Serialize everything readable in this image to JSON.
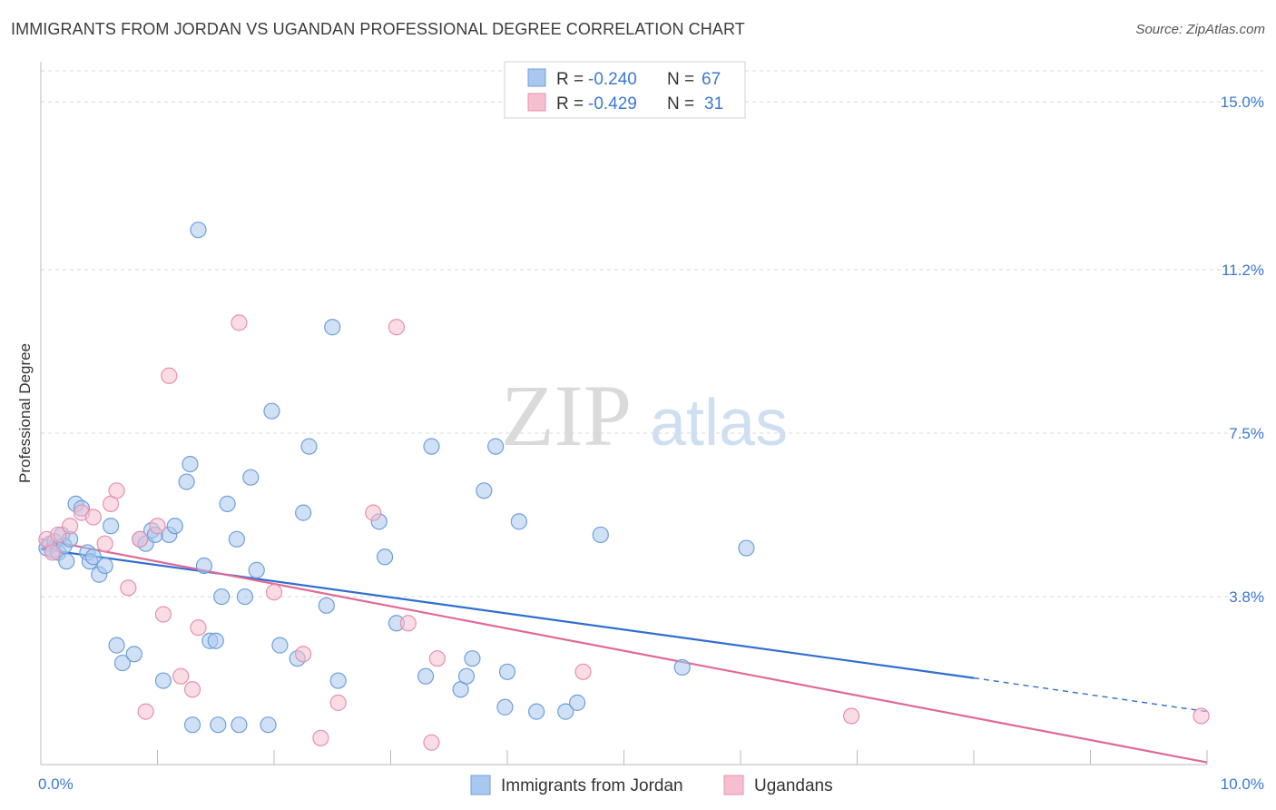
{
  "header": {
    "title": "IMMIGRANTS FROM JORDAN VS UGANDAN PROFESSIONAL DEGREE CORRELATION CHART",
    "source": "Source: ZipAtlas.com"
  },
  "watermark": {
    "zip": "ZIP",
    "atlas": "atlas"
  },
  "legend": {
    "r_label": "R =",
    "n_label": "N =",
    "rows": [
      {
        "r": "-0.240",
        "n": "67"
      },
      {
        "r": "-0.429",
        "n": "31"
      }
    ]
  },
  "colors": {
    "blue_fill": "#a9c8ef",
    "blue_stroke": "#6f9fdc",
    "blue_line": "#2f6fd0",
    "pink_fill": "#f6bfd0",
    "pink_stroke": "#e890ac",
    "pink_line": "#e06a96",
    "grid": "#d8d8d8",
    "tick_text": "#3b78d4"
  },
  "chart_data": {
    "type": "scatter",
    "title": "IMMIGRANTS FROM JORDAN VS UGANDAN PROFESSIONAL DEGREE CORRELATION CHART",
    "xlabel": "",
    "ylabel": "Professional Degree",
    "xlim": [
      0,
      10
    ],
    "ylim": [
      0,
      15.7
    ],
    "x_ticks": [
      0,
      10
    ],
    "x_tick_labels": [
      "0.0%",
      "10.0%"
    ],
    "y_ticks": [
      3.8,
      7.5,
      11.2,
      15.0
    ],
    "y_tick_labels": [
      "3.8%",
      "7.5%",
      "11.2%",
      "15.0%"
    ],
    "grid": "horizontal-dashed",
    "legend_position": "top-center",
    "series": [
      {
        "name": "Immigrants from Jordan",
        "color": "#a9c8ef",
        "trend": {
          "x0": 0,
          "y0": 4.88,
          "x1": 8.0,
          "y1": 1.96,
          "dashed_to_x": 10,
          "dashed_to_y": 1.2
        },
        "points": [
          [
            0.05,
            4.9
          ],
          [
            0.08,
            5.0
          ],
          [
            0.1,
            4.85
          ],
          [
            0.12,
            5.05
          ],
          [
            0.15,
            4.8
          ],
          [
            0.18,
            5.2
          ],
          [
            0.2,
            4.95
          ],
          [
            0.22,
            4.6
          ],
          [
            0.25,
            5.1
          ],
          [
            0.3,
            5.9
          ],
          [
            0.35,
            5.8
          ],
          [
            0.4,
            4.8
          ],
          [
            0.42,
            4.6
          ],
          [
            0.45,
            4.7
          ],
          [
            0.5,
            4.3
          ],
          [
            0.55,
            4.5
          ],
          [
            0.6,
            5.4
          ],
          [
            0.65,
            2.7
          ],
          [
            0.7,
            2.3
          ],
          [
            0.8,
            2.5
          ],
          [
            0.85,
            5.1
          ],
          [
            0.9,
            5.0
          ],
          [
            0.95,
            5.3
          ],
          [
            0.98,
            5.2
          ],
          [
            1.05,
            1.9
          ],
          [
            1.1,
            5.2
          ],
          [
            1.15,
            5.4
          ],
          [
            1.25,
            6.4
          ],
          [
            1.28,
            6.8
          ],
          [
            1.35,
            12.1
          ],
          [
            1.4,
            4.5
          ],
          [
            1.45,
            2.8
          ],
          [
            1.55,
            3.8
          ],
          [
            1.6,
            5.9
          ],
          [
            1.68,
            5.1
          ],
          [
            1.75,
            3.8
          ],
          [
            1.8,
            6.5
          ],
          [
            1.85,
            4.4
          ],
          [
            1.98,
            8.0
          ],
          [
            2.05,
            2.7
          ],
          [
            2.2,
            2.4
          ],
          [
            2.25,
            5.7
          ],
          [
            2.3,
            7.2
          ],
          [
            2.45,
            3.6
          ],
          [
            2.5,
            9.9
          ],
          [
            2.55,
            1.9
          ],
          [
            2.9,
            5.5
          ],
          [
            2.95,
            4.7
          ],
          [
            3.05,
            3.2
          ],
          [
            3.3,
            2.0
          ],
          [
            3.35,
            7.2
          ],
          [
            3.6,
            1.7
          ],
          [
            3.65,
            2.0
          ],
          [
            3.7,
            2.4
          ],
          [
            3.8,
            6.2
          ],
          [
            3.9,
            7.2
          ],
          [
            3.98,
            1.3
          ],
          [
            4.0,
            2.1
          ],
          [
            4.1,
            5.5
          ],
          [
            4.25,
            1.2
          ],
          [
            4.5,
            1.2
          ],
          [
            4.6,
            1.4
          ],
          [
            4.8,
            5.2
          ],
          [
            5.5,
            2.2
          ],
          [
            6.05,
            4.9
          ],
          [
            1.3,
            0.9
          ],
          [
            1.5,
            2.8
          ]
        ],
        "extra_points": [
          [
            1.52,
            0.9
          ],
          [
            1.7,
            0.9
          ],
          [
            1.95,
            0.9
          ]
        ]
      },
      {
        "name": "Ugandans",
        "color": "#f6bfd0",
        "trend": {
          "x0": 0,
          "y0": 5.1,
          "x1": 10,
          "y1": 0.05
        },
        "points": [
          [
            0.05,
            5.1
          ],
          [
            0.1,
            4.8
          ],
          [
            0.15,
            5.2
          ],
          [
            0.25,
            5.4
          ],
          [
            0.35,
            5.7
          ],
          [
            0.45,
            5.6
          ],
          [
            0.55,
            5.0
          ],
          [
            0.6,
            5.9
          ],
          [
            0.65,
            6.2
          ],
          [
            0.75,
            4.0
          ],
          [
            0.85,
            5.1
          ],
          [
            0.9,
            1.2
          ],
          [
            1.0,
            5.4
          ],
          [
            1.05,
            3.4
          ],
          [
            1.1,
            8.8
          ],
          [
            1.2,
            2.0
          ],
          [
            1.3,
            1.7
          ],
          [
            1.35,
            3.1
          ],
          [
            1.7,
            10.0
          ],
          [
            2.0,
            3.9
          ],
          [
            2.25,
            2.5
          ],
          [
            2.4,
            0.6
          ],
          [
            2.55,
            1.4
          ],
          [
            2.85,
            5.7
          ],
          [
            3.05,
            9.9
          ],
          [
            3.15,
            3.2
          ],
          [
            3.35,
            0.5
          ],
          [
            3.4,
            2.4
          ],
          [
            4.65,
            2.1
          ],
          [
            6.95,
            1.1
          ],
          [
            9.95,
            1.1
          ]
        ]
      }
    ]
  }
}
